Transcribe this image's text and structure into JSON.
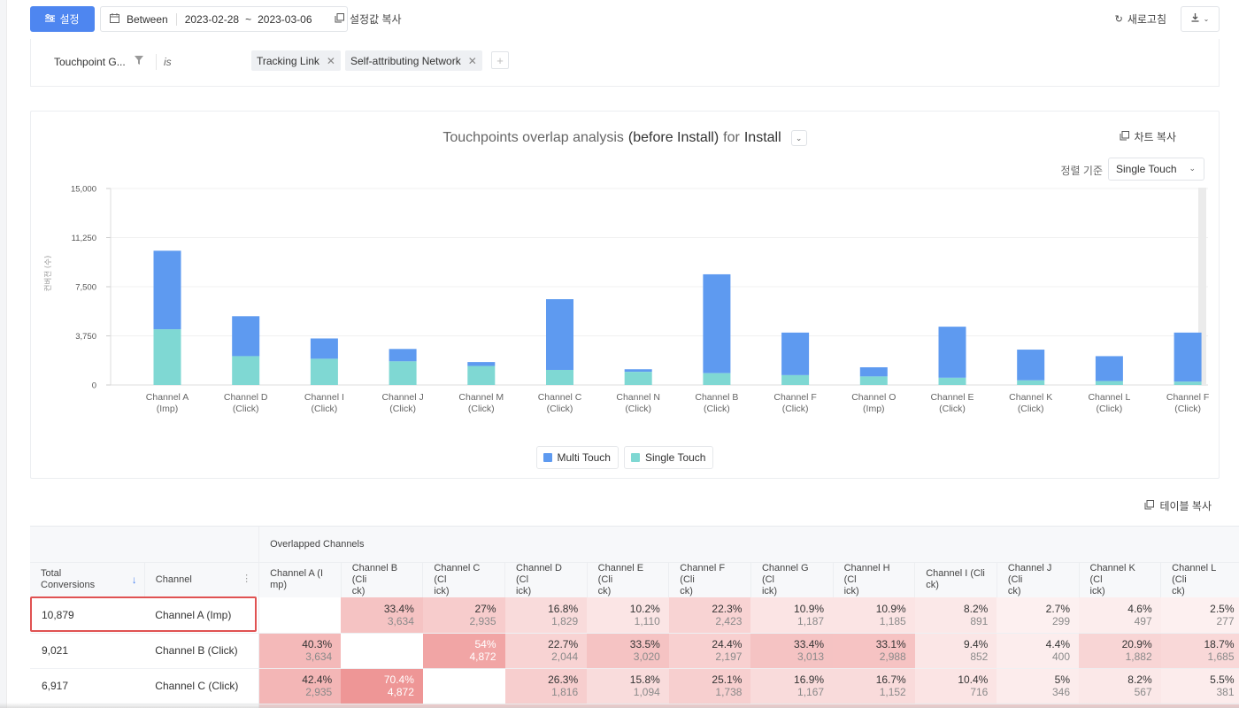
{
  "toolbar": {
    "settings_label": "설정",
    "date_mode": "Between",
    "date_start": "2023-02-28",
    "date_tilde": "~",
    "date_end": "2023-03-06",
    "copy_settings_label": "설정값 복사",
    "refresh_label": "새로고침"
  },
  "filter": {
    "field": "Touchpoint G...",
    "operator": "is",
    "chips": [
      "Tracking Link",
      "Self-attributing Network"
    ]
  },
  "chart_panel": {
    "title_pre": "Touchpoints overlap analysis",
    "title_mid": "(before Install)",
    "title_for": "for",
    "title_event": "Install",
    "copy_label": "차트 복사",
    "sort_label": "정렬 기준",
    "sort_value": "Single Touch"
  },
  "chart_data": {
    "type": "bar",
    "stacked": true,
    "ylabel": "컨버전 (수)",
    "ylim": [
      0,
      15000
    ],
    "yticks": [
      "0",
      "3,750",
      "7,500",
      "11,250",
      "15,000"
    ],
    "categories": [
      [
        "Channel A",
        "(Imp)"
      ],
      [
        "Channel D",
        "(Click)"
      ],
      [
        "Channel I",
        "(Click)"
      ],
      [
        "Channel J",
        "(Click)"
      ],
      [
        "Channel M",
        "(Click)"
      ],
      [
        "Channel C",
        "(Click)"
      ],
      [
        "Channel N",
        "(Click)"
      ],
      [
        "Channel B",
        "(Click)"
      ],
      [
        "Channel F",
        "(Click)"
      ],
      [
        "Channel O",
        "(Imp)"
      ],
      [
        "Channel E",
        "(Click)"
      ],
      [
        "Channel K",
        "(Click)"
      ],
      [
        "Channel L",
        "(Click)"
      ],
      [
        "Channel F",
        "(Click)"
      ]
    ],
    "series": [
      {
        "name": "Single Touch",
        "color": "#7fd8d3",
        "values": [
          4250,
          2200,
          2000,
          1800,
          1450,
          1150,
          1000,
          900,
          750,
          650,
          550,
          350,
          300,
          250
        ]
      },
      {
        "name": "Multi Touch",
        "color": "#5e9af0",
        "values": [
          6000,
          3050,
          1550,
          950,
          300,
          5400,
          200,
          7550,
          3250,
          700,
          3900,
          2350,
          1900,
          3750
        ]
      }
    ]
  },
  "table_panel": {
    "copy_label": "테이블 복사",
    "group_header": "Overlapped Channels",
    "col_total": [
      "Total",
      "Conversions"
    ],
    "col_channel": "Channel",
    "overlap_columns": [
      [
        "Channel A (I",
        "mp)"
      ],
      [
        "Channel B (Cli",
        "ck)"
      ],
      [
        "Channel C (Cl",
        "ick)"
      ],
      [
        "Channel D (Cl",
        "ick)"
      ],
      [
        "Channel E (Cli",
        "ck)"
      ],
      [
        "Channel F (Cli",
        "ck)"
      ],
      [
        "Channel G (Cl",
        "ick)"
      ],
      [
        "Channel H (Cl",
        "ick)"
      ],
      [
        "Channel I (Cli",
        "ck)"
      ],
      [
        "Channel J (Cli",
        "ck)"
      ],
      [
        "Channel K (Cl",
        "ick)"
      ],
      [
        "Channel L (Cli",
        "ck)"
      ]
    ],
    "rows": [
      {
        "total": "10,879",
        "channel": "Channel A (Imp)",
        "cells": [
          null,
          [
            "33.4%",
            "3,634"
          ],
          [
            "27%",
            "2,935"
          ],
          [
            "16.8%",
            "1,829"
          ],
          [
            "10.2%",
            "1,110"
          ],
          [
            "22.3%",
            "2,423"
          ],
          [
            "10.9%",
            "1,187"
          ],
          [
            "10.9%",
            "1,185"
          ],
          [
            "8.2%",
            "891"
          ],
          [
            "2.7%",
            "299"
          ],
          [
            "4.6%",
            "497"
          ],
          [
            "2.5%",
            "277"
          ]
        ]
      },
      {
        "total": "9,021",
        "channel": "Channel B (Click)",
        "cells": [
          [
            "40.3%",
            "3,634"
          ],
          null,
          [
            "54%",
            "4,872"
          ],
          [
            "22.7%",
            "2,044"
          ],
          [
            "33.5%",
            "3,020"
          ],
          [
            "24.4%",
            "2,197"
          ],
          [
            "33.4%",
            "3,013"
          ],
          [
            "33.1%",
            "2,988"
          ],
          [
            "9.4%",
            "852"
          ],
          [
            "4.4%",
            "400"
          ],
          [
            "20.9%",
            "1,882"
          ],
          [
            "18.7%",
            "1,685"
          ]
        ]
      },
      {
        "total": "6,917",
        "channel": "Channel C (Click)",
        "cells": [
          [
            "42.4%",
            "2,935"
          ],
          [
            "70.4%",
            "4,872"
          ],
          null,
          [
            "26.3%",
            "1,816"
          ],
          [
            "15.8%",
            "1,094"
          ],
          [
            "25.1%",
            "1,738"
          ],
          [
            "16.9%",
            "1,167"
          ],
          [
            "16.7%",
            "1,152"
          ],
          [
            "10.4%",
            "716"
          ],
          [
            "5%",
            "346"
          ],
          [
            "8.2%",
            "567"
          ],
          [
            "5.5%",
            "381"
          ]
        ]
      },
      {
        "total": "",
        "channel": "",
        "cells": [
          [
            "",
            ""
          ],
          [
            "",
            ""
          ],
          [
            "",
            ""
          ],
          [
            "",
            ""
          ],
          [
            "",
            ""
          ],
          [
            "",
            ""
          ],
          [
            "",
            ""
          ],
          [
            "",
            ""
          ],
          [
            "",
            ""
          ],
          [
            "",
            ""
          ],
          [
            "",
            ""
          ],
          [
            "",
            ""
          ]
        ]
      }
    ]
  }
}
